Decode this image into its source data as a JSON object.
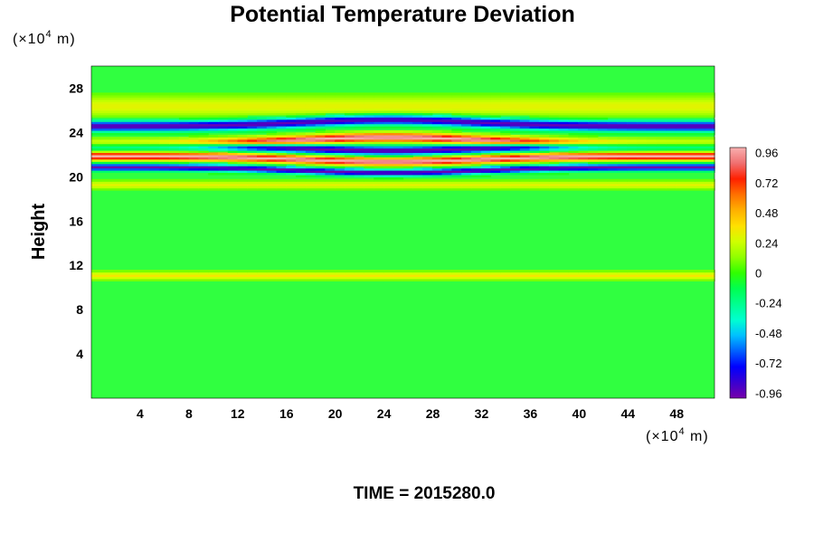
{
  "chart_data": {
    "type": "heatmap",
    "title": "Potential Temperature Deviation",
    "ylabel": "Height",
    "xlabel": "",
    "y_unit_prefix": "(×10",
    "y_unit_exp": "4",
    "y_unit_suffix": " m)",
    "x_unit_prefix": "(×10",
    "x_unit_exp": "4",
    "x_unit_suffix": " m)",
    "xlim": [
      0,
      51.1
    ],
    "ylim": [
      0,
      30
    ],
    "x_ticks": [
      "4",
      "8",
      "12",
      "16",
      "20",
      "24",
      "28",
      "32",
      "36",
      "40",
      "44",
      "48"
    ],
    "y_ticks": [
      "4",
      "8",
      "12",
      "16",
      "20",
      "24",
      "28"
    ],
    "colorbar": {
      "range": [
        -1.0,
        1.0
      ],
      "ticks": [
        "0.96",
        "0.72",
        "0.48",
        "0.24",
        "0",
        "-0.24",
        "-0.48",
        "-0.72",
        "-0.96"
      ],
      "colors_bottom_to_top": [
        "#7700aa",
        "#3a00d0",
        "#0000ff",
        "#0060ff",
        "#00c0ff",
        "#00ffd0",
        "#00ff90",
        "#00ff50",
        "#30ff00",
        "#90ff00",
        "#d0ff00",
        "#ffe000",
        "#ffb000",
        "#ff7000",
        "#ff2000",
        "#f07070",
        "#f8b0b0"
      ]
    },
    "bands": [
      {
        "y": 26.4,
        "value": 0.3,
        "sigma": 0.9
      },
      {
        "y": 25.2,
        "value": -0.98,
        "sigma": 0.45
      },
      {
        "y": 23.6,
        "value": 1.0,
        "sigma": 0.4
      },
      {
        "y": 22.4,
        "value": -0.98,
        "sigma": 0.4
      },
      {
        "y": 21.4,
        "value": 1.0,
        "sigma": 0.35
      },
      {
        "y": 20.4,
        "value": -0.98,
        "sigma": 0.3
      },
      {
        "y": 19.3,
        "value": 0.3,
        "sigma": 0.35
      },
      {
        "y": 11.1,
        "value": 0.35,
        "sigma": 0.35
      }
    ],
    "footer": "TIME = 2015280.0"
  }
}
